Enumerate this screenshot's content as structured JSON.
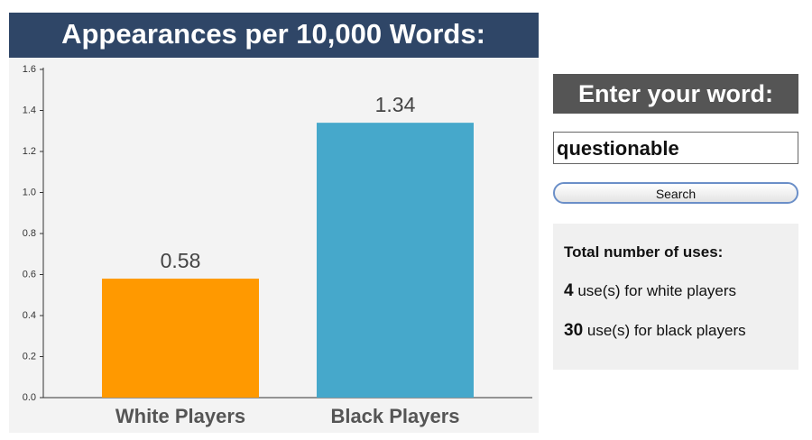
{
  "chart_data": {
    "type": "bar",
    "title": "Appearances per 10,000 Words:",
    "categories": [
      "White Players",
      "Black Players"
    ],
    "values": [
      0.58,
      1.34
    ],
    "colors": [
      "#ff9900",
      "#46a8cb"
    ],
    "ylim": [
      0,
      1.6
    ],
    "yticks": [
      {
        "value": 0,
        "label": "0.0"
      },
      0.2,
      0.4,
      0.6,
      0.8,
      {
        "value": 1,
        "label": "1.0"
      },
      1.2,
      1.4,
      1.6
    ]
  },
  "search": {
    "heading": "Enter your word:",
    "input": "questionable",
    "button": "Search"
  },
  "stats": {
    "heading": "Total number of uses:",
    "rows": [
      {
        "count": "4",
        "text": "use(s) for white players"
      },
      {
        "count": "30",
        "text": "use(s) for black players"
      }
    ]
  }
}
